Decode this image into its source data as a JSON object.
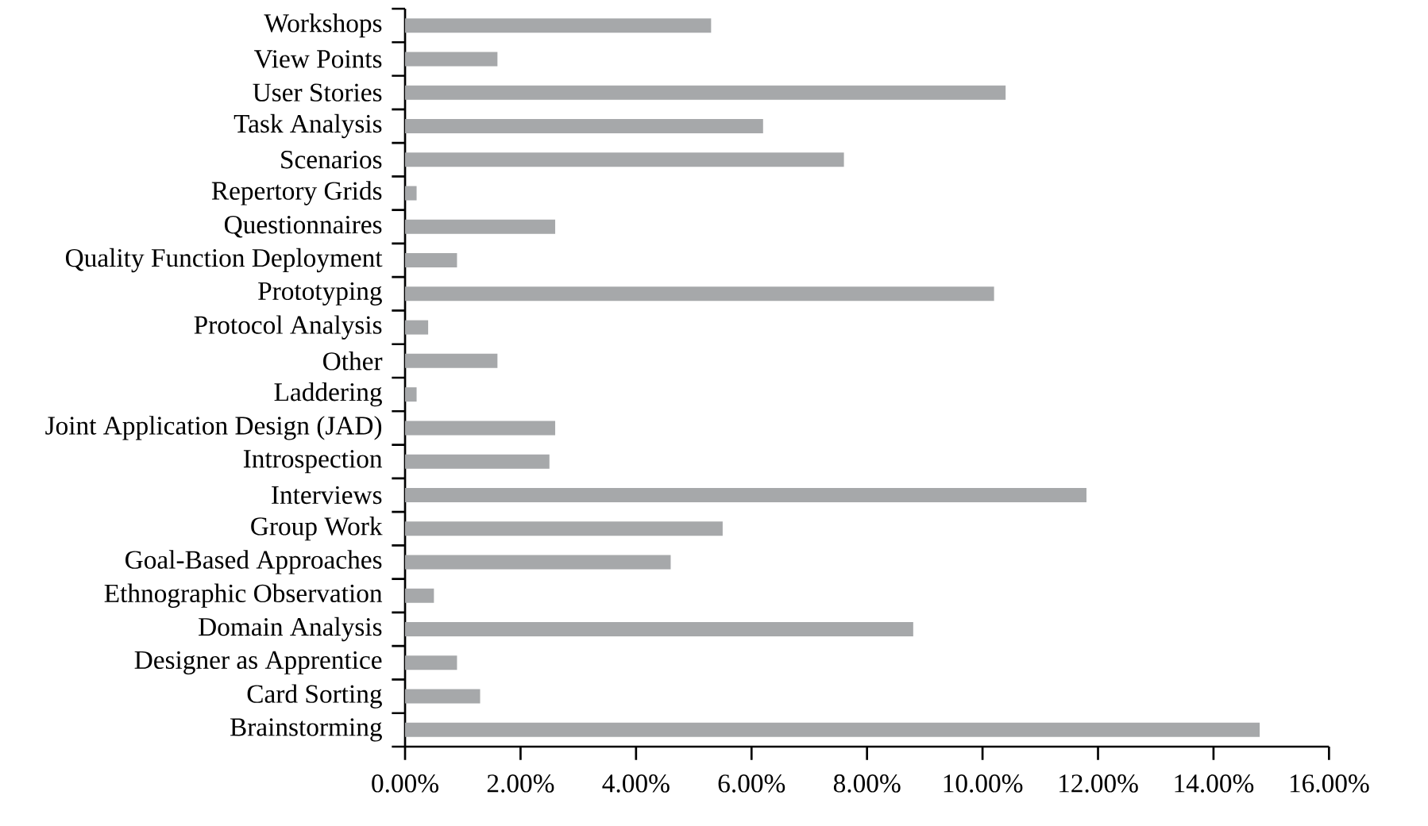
{
  "chart_data": {
    "type": "bar",
    "orientation": "horizontal",
    "categories": [
      "Workshops",
      "View Points",
      "User Stories",
      "Task Analysis",
      "Scenarios",
      "Repertory Grids",
      "Questionnaires",
      "Quality Function Deployment",
      "Prototyping",
      "Protocol Analysis",
      "Other",
      "Laddering",
      "Joint Application Design (JAD)",
      "Introspection",
      "Interviews",
      "Group Work",
      "Goal-Based Approaches",
      "Ethnographic Observation",
      "Domain Analysis",
      "Designer as Apprentice",
      "Card Sorting",
      "Brainstorming"
    ],
    "values": [
      5.3,
      1.6,
      10.4,
      6.2,
      7.6,
      0.2,
      2.6,
      0.9,
      10.2,
      0.4,
      1.6,
      0.2,
      2.6,
      2.5,
      11.8,
      5.5,
      4.6,
      0.5,
      8.8,
      0.9,
      1.3,
      14.8
    ],
    "color": "#a6a8aa",
    "xlim": [
      0,
      16
    ],
    "xticks": [
      {
        "value": 0,
        "label": "0.00%"
      },
      {
        "value": 2,
        "label": "2.00%"
      },
      {
        "value": 4,
        "label": "4.00%"
      },
      {
        "value": 6,
        "label": "6.00%"
      },
      {
        "value": 8,
        "label": "8.00%"
      },
      {
        "value": 10,
        "label": "10.00%"
      },
      {
        "value": 12,
        "label": "12.00%"
      },
      {
        "value": 14,
        "label": "14.00%"
      },
      {
        "value": 16,
        "label": "16.00%"
      }
    ]
  }
}
